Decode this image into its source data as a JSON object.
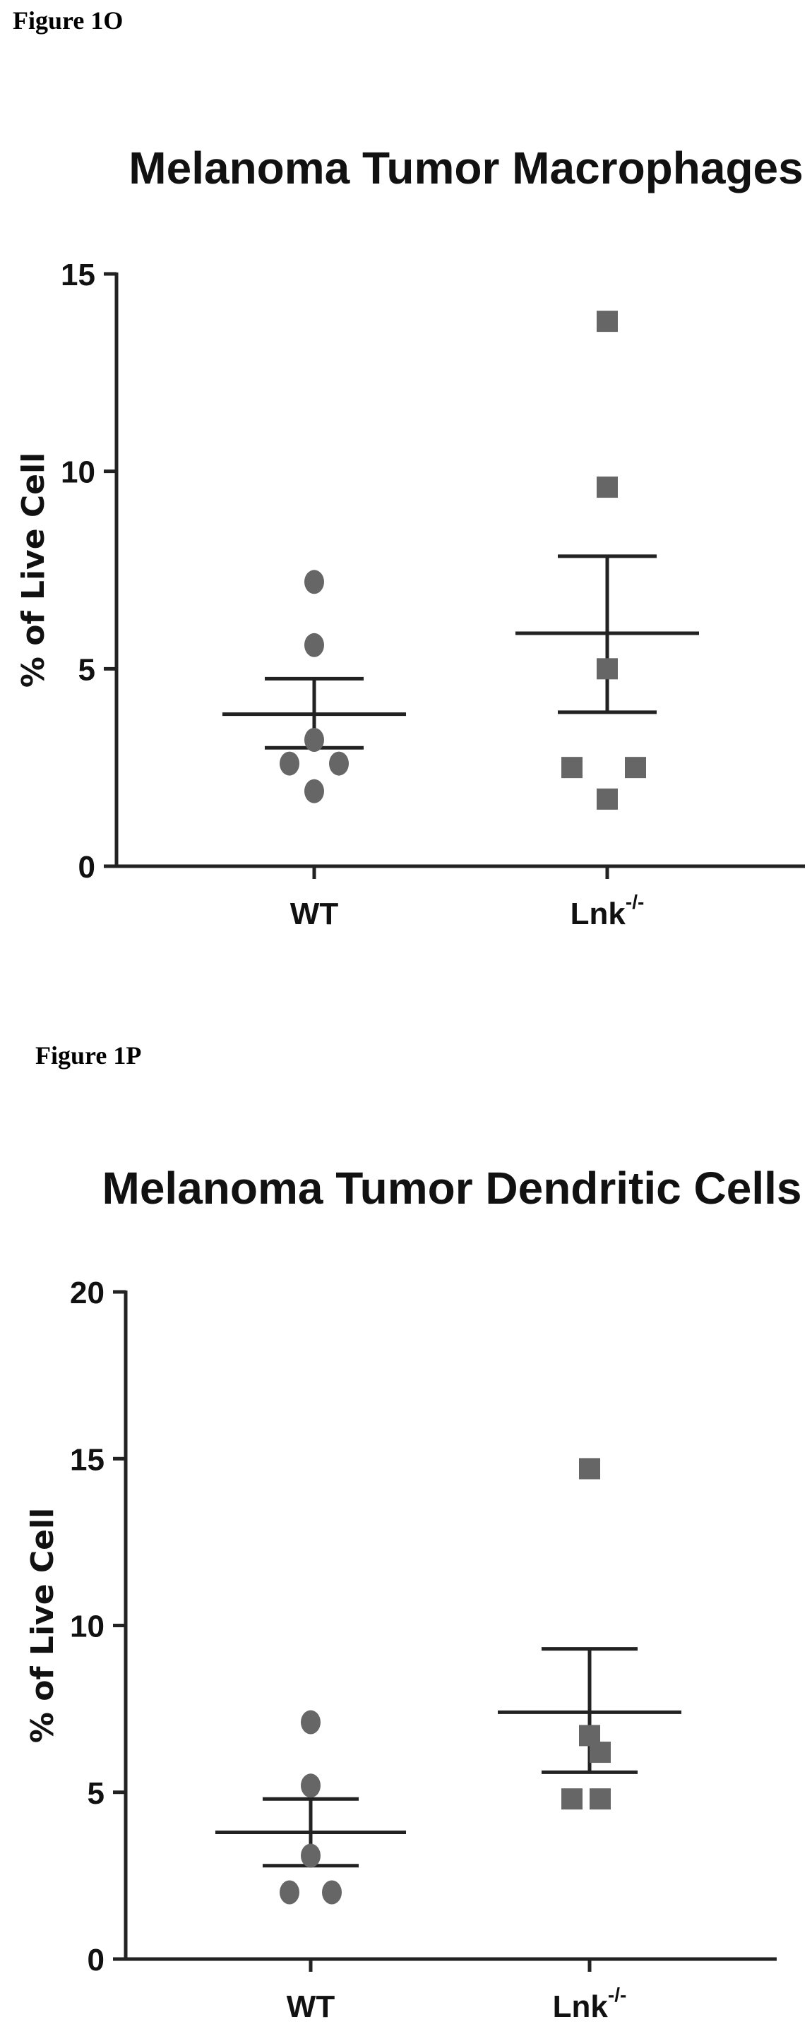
{
  "figures": [
    {
      "label": "Figure 1O"
    },
    {
      "label": "Figure 1P"
    }
  ],
  "chart_data": [
    {
      "type": "scatter",
      "title": "Melanoma Tumor Macrophages",
      "ylabel": "% of Live Cell",
      "xlabel": "",
      "categories": [
        "WT",
        "Lnk"
      ],
      "category_superscripts": [
        "",
        "-/-"
      ],
      "ylim": [
        0,
        15
      ],
      "yticks": [
        0,
        5,
        10,
        15
      ],
      "grid": false,
      "series": [
        {
          "values": [
            7.2,
            5.6,
            3.2,
            2.6,
            2.6,
            1.9
          ],
          "mean": 3.85,
          "sem_low": 3.0,
          "sem_high": 4.75,
          "marker": "circle"
        },
        {
          "values": [
            13.8,
            9.6,
            5.0,
            2.5,
            2.5,
            1.7
          ],
          "mean": 5.9,
          "sem_low": 3.9,
          "sem_high": 7.85,
          "marker": "square"
        }
      ]
    },
    {
      "type": "scatter",
      "title": "Melanoma Tumor Dendritic Cells",
      "ylabel": "% of Live Cell",
      "xlabel": "",
      "categories": [
        "WT",
        "Lnk"
      ],
      "category_superscripts": [
        "",
        "-/-"
      ],
      "ylim": [
        0,
        20
      ],
      "yticks": [
        0,
        5,
        10,
        15,
        20
      ],
      "grid": false,
      "series": [
        {
          "values": [
            7.1,
            5.2,
            3.1,
            2.0,
            2.0
          ],
          "mean": 3.8,
          "sem_low": 2.8,
          "sem_high": 4.8,
          "marker": "circle"
        },
        {
          "values": [
            14.7,
            6.7,
            6.2,
            4.8,
            4.8
          ],
          "mean": 7.4,
          "sem_low": 5.6,
          "sem_high": 9.3,
          "marker": "square"
        }
      ]
    }
  ]
}
